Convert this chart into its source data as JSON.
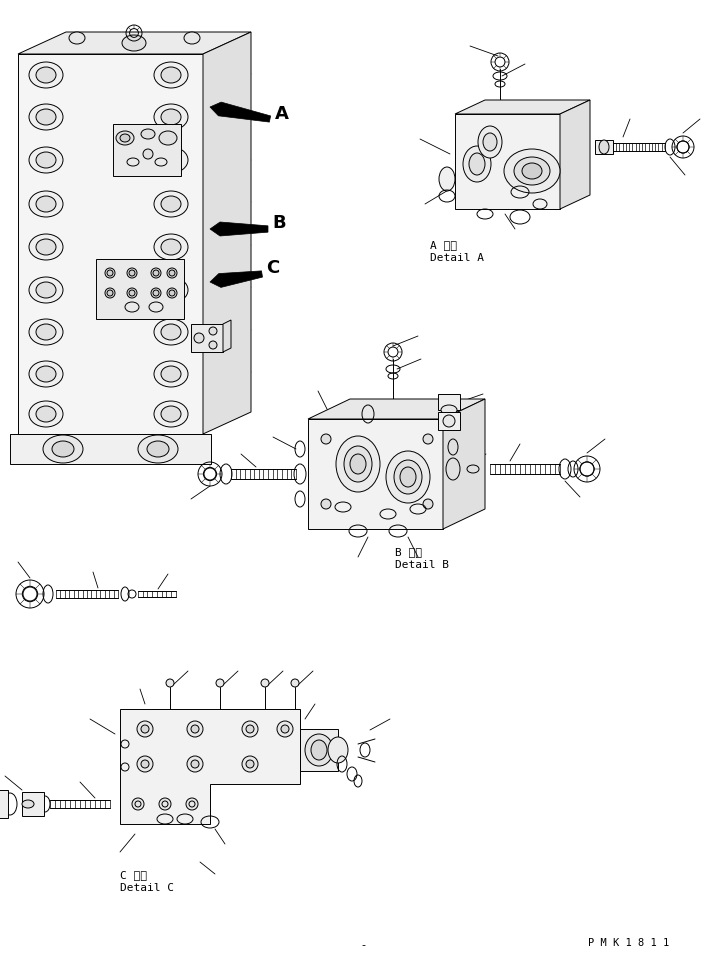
{
  "background_color": "#ffffff",
  "figure_width": 7.28,
  "figure_height": 9.62,
  "dpi": 100,
  "watermark": "P M K 1 8 1 1",
  "label_A_top": "A 詳細",
  "label_A_bottom": "Detail A",
  "label_B_top": "B 詳細",
  "label_B_bottom": "Detail B",
  "label_C_top": "C 詳細",
  "label_C_bottom": "Detail C",
  "font_color": "#000000",
  "line_color": "#000000",
  "line_width": 0.7
}
